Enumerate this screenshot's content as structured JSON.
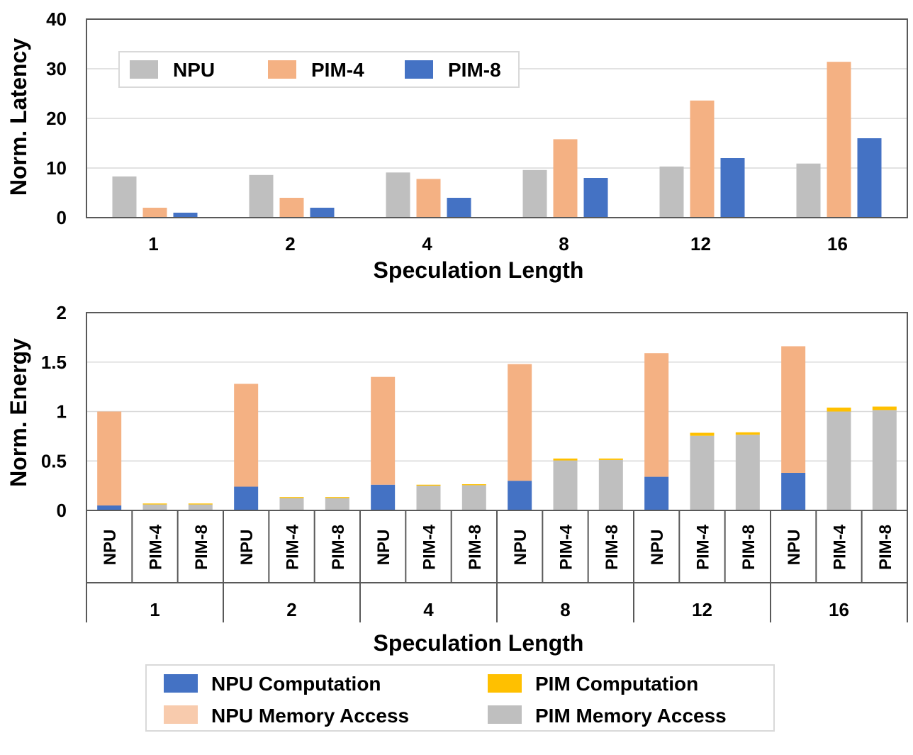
{
  "chart_data": [
    {
      "type": "bar",
      "title": "",
      "xlabel": "Speculation Length",
      "ylabel": "Norm. Latency",
      "categories": [
        "1",
        "2",
        "4",
        "8",
        "12",
        "16"
      ],
      "ylim": [
        0,
        40
      ],
      "yticks": [
        "0",
        "10",
        "20",
        "30",
        "40"
      ],
      "grid": true,
      "legend_position": "top-left",
      "series": [
        {
          "name": "NPU",
          "color": "#bfbfbf",
          "values": [
            8.3,
            8.6,
            9.1,
            9.6,
            10.3,
            10.9
          ]
        },
        {
          "name": "PIM-4",
          "color": "#f4b183",
          "values": [
            2.0,
            4.0,
            7.8,
            15.8,
            23.6,
            31.4
          ]
        },
        {
          "name": "PIM-8",
          "color": "#4472c4",
          "values": [
            1.0,
            2.0,
            4.0,
            8.0,
            12.0,
            16.0
          ]
        }
      ]
    },
    {
      "type": "bar",
      "stacked": true,
      "title": "",
      "xlabel": "Speculation Length",
      "ylabel": "Norm. Energy",
      "groups": [
        "1",
        "2",
        "4",
        "8",
        "12",
        "16"
      ],
      "subcategories": [
        "NPU",
        "PIM-4",
        "PIM-8"
      ],
      "ylim": [
        0,
        2
      ],
      "yticks": [
        "0",
        "0.5",
        "1",
        "1.5",
        "2"
      ],
      "grid": true,
      "legend_position": "bottom",
      "series": [
        {
          "name": "NPU Computation",
          "color": "#4472c4",
          "values": [
            [
              0.05,
              0,
              0
            ],
            [
              0.24,
              0,
              0
            ],
            [
              0.26,
              0,
              0
            ],
            [
              0.3,
              0,
              0
            ],
            [
              0.34,
              0,
              0
            ],
            [
              0.38,
              0,
              0
            ]
          ]
        },
        {
          "name": "NPU Memory Access",
          "color": "#f4b183",
          "values": [
            [
              0.95,
              0,
              0
            ],
            [
              1.04,
              0,
              0
            ],
            [
              1.09,
              0,
              0
            ],
            [
              1.18,
              0,
              0
            ],
            [
              1.25,
              0,
              0
            ],
            [
              1.28,
              0,
              0
            ]
          ]
        },
        {
          "name": "PIM Memory Access",
          "color": "#bfbfbf",
          "values": [
            [
              0,
              0.06,
              0.06
            ],
            [
              0,
              0.125,
              0.125
            ],
            [
              0,
              0.25,
              0.255
            ],
            [
              0,
              0.505,
              0.51
            ],
            [
              0,
              0.755,
              0.765
            ],
            [
              0,
              1.0,
              1.015
            ]
          ]
        },
        {
          "name": "PIM Computation",
          "color": "#ffc000",
          "values": [
            [
              0,
              0.01,
              0.01
            ],
            [
              0,
              0.01,
              0.01
            ],
            [
              0,
              0.01,
              0.01
            ],
            [
              0,
              0.02,
              0.015
            ],
            [
              0,
              0.03,
              0.025
            ],
            [
              0,
              0.04,
              0.035
            ]
          ]
        }
      ],
      "legend_order": [
        "NPU Computation",
        "PIM Computation",
        "NPU Memory Access",
        "PIM Memory Access"
      ]
    }
  ]
}
